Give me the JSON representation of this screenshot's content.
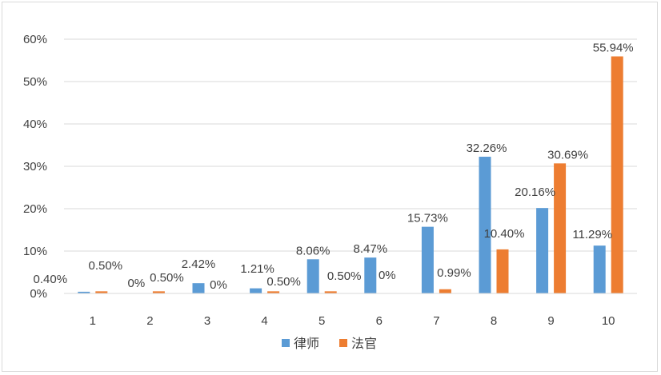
{
  "chart_data": {
    "type": "bar",
    "categories": [
      "1",
      "2",
      "3",
      "4",
      "5",
      "6",
      "7",
      "8",
      "9",
      "10"
    ],
    "series": [
      {
        "name": "律师",
        "color": "#5b9bd5",
        "values": [
          0.4,
          0,
          2.42,
          1.21,
          8.06,
          8.47,
          15.73,
          32.26,
          20.16,
          11.29
        ],
        "labels": [
          "0.40%",
          "0%",
          "2.42%",
          "1.21%",
          "8.06%",
          "8.47%",
          "15.73%",
          "32.26%",
          "20.16%",
          "11.29%"
        ]
      },
      {
        "name": "法官",
        "color": "#ed7d31",
        "values": [
          0.5,
          0.5,
          0,
          0.5,
          0.5,
          0,
          0.99,
          10.4,
          30.69,
          55.94
        ],
        "labels": [
          "0.50%",
          "0.50%",
          "0%",
          "0.50%",
          "0.50%",
          "0%",
          "0.99%",
          "10.40%",
          "30.69%",
          "55.94%"
        ]
      }
    ],
    "yticks": [
      "0%",
      "10%",
      "20%",
      "30%",
      "40%",
      "50%",
      "60%"
    ],
    "ylim": [
      0,
      60
    ],
    "grid": true,
    "legend_position": "bottom"
  }
}
